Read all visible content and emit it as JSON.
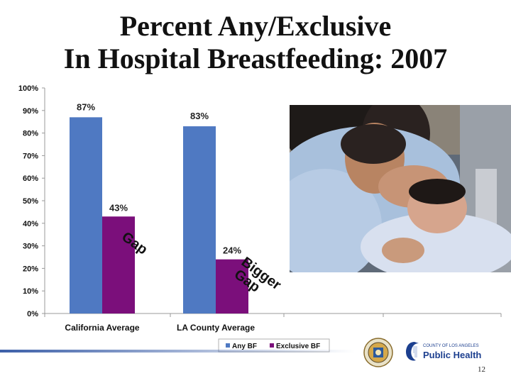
{
  "slide": {
    "title_line1": "Percent Any/Exclusive",
    "title_line2": "In Hospital Breastfeeding: 2007",
    "page_number": "12"
  },
  "logos": {
    "public_health_small": "COUNTY OF LOS ANGELES",
    "public_health_big": "Public Health"
  },
  "annotations": {
    "gap_small": "Gap",
    "gap_big_line1": "Bigger",
    "gap_big_line2": "Gap"
  },
  "colors": {
    "any_bf": "#4f79c2",
    "exclusive_bf": "#7b0f7b",
    "axis": "#999999",
    "gridline": "#cccccc"
  },
  "chart_data": {
    "type": "bar",
    "title": "Percent Any/Exclusive In Hospital Breastfeeding: 2007",
    "categories": [
      "California Average",
      "LA County Average"
    ],
    "series": [
      {
        "name": "Any BF",
        "values": [
          87,
          83
        ],
        "labels": [
          "87%",
          "83%"
        ]
      },
      {
        "name": "Exclusive BF",
        "values": [
          43,
          24
        ],
        "labels": [
          "43%",
          "24%"
        ]
      }
    ],
    "ylim": [
      0,
      100
    ],
    "yticks": [
      0,
      10,
      20,
      30,
      40,
      50,
      60,
      70,
      80,
      90,
      100
    ],
    "ytick_labels": [
      "0%",
      "10%",
      "20%",
      "30%",
      "40%",
      "50%",
      "60%",
      "70%",
      "80%",
      "90%",
      "100%"
    ],
    "xlabel": "",
    "ylabel": "",
    "legend_position": "bottom",
    "grid": false
  }
}
